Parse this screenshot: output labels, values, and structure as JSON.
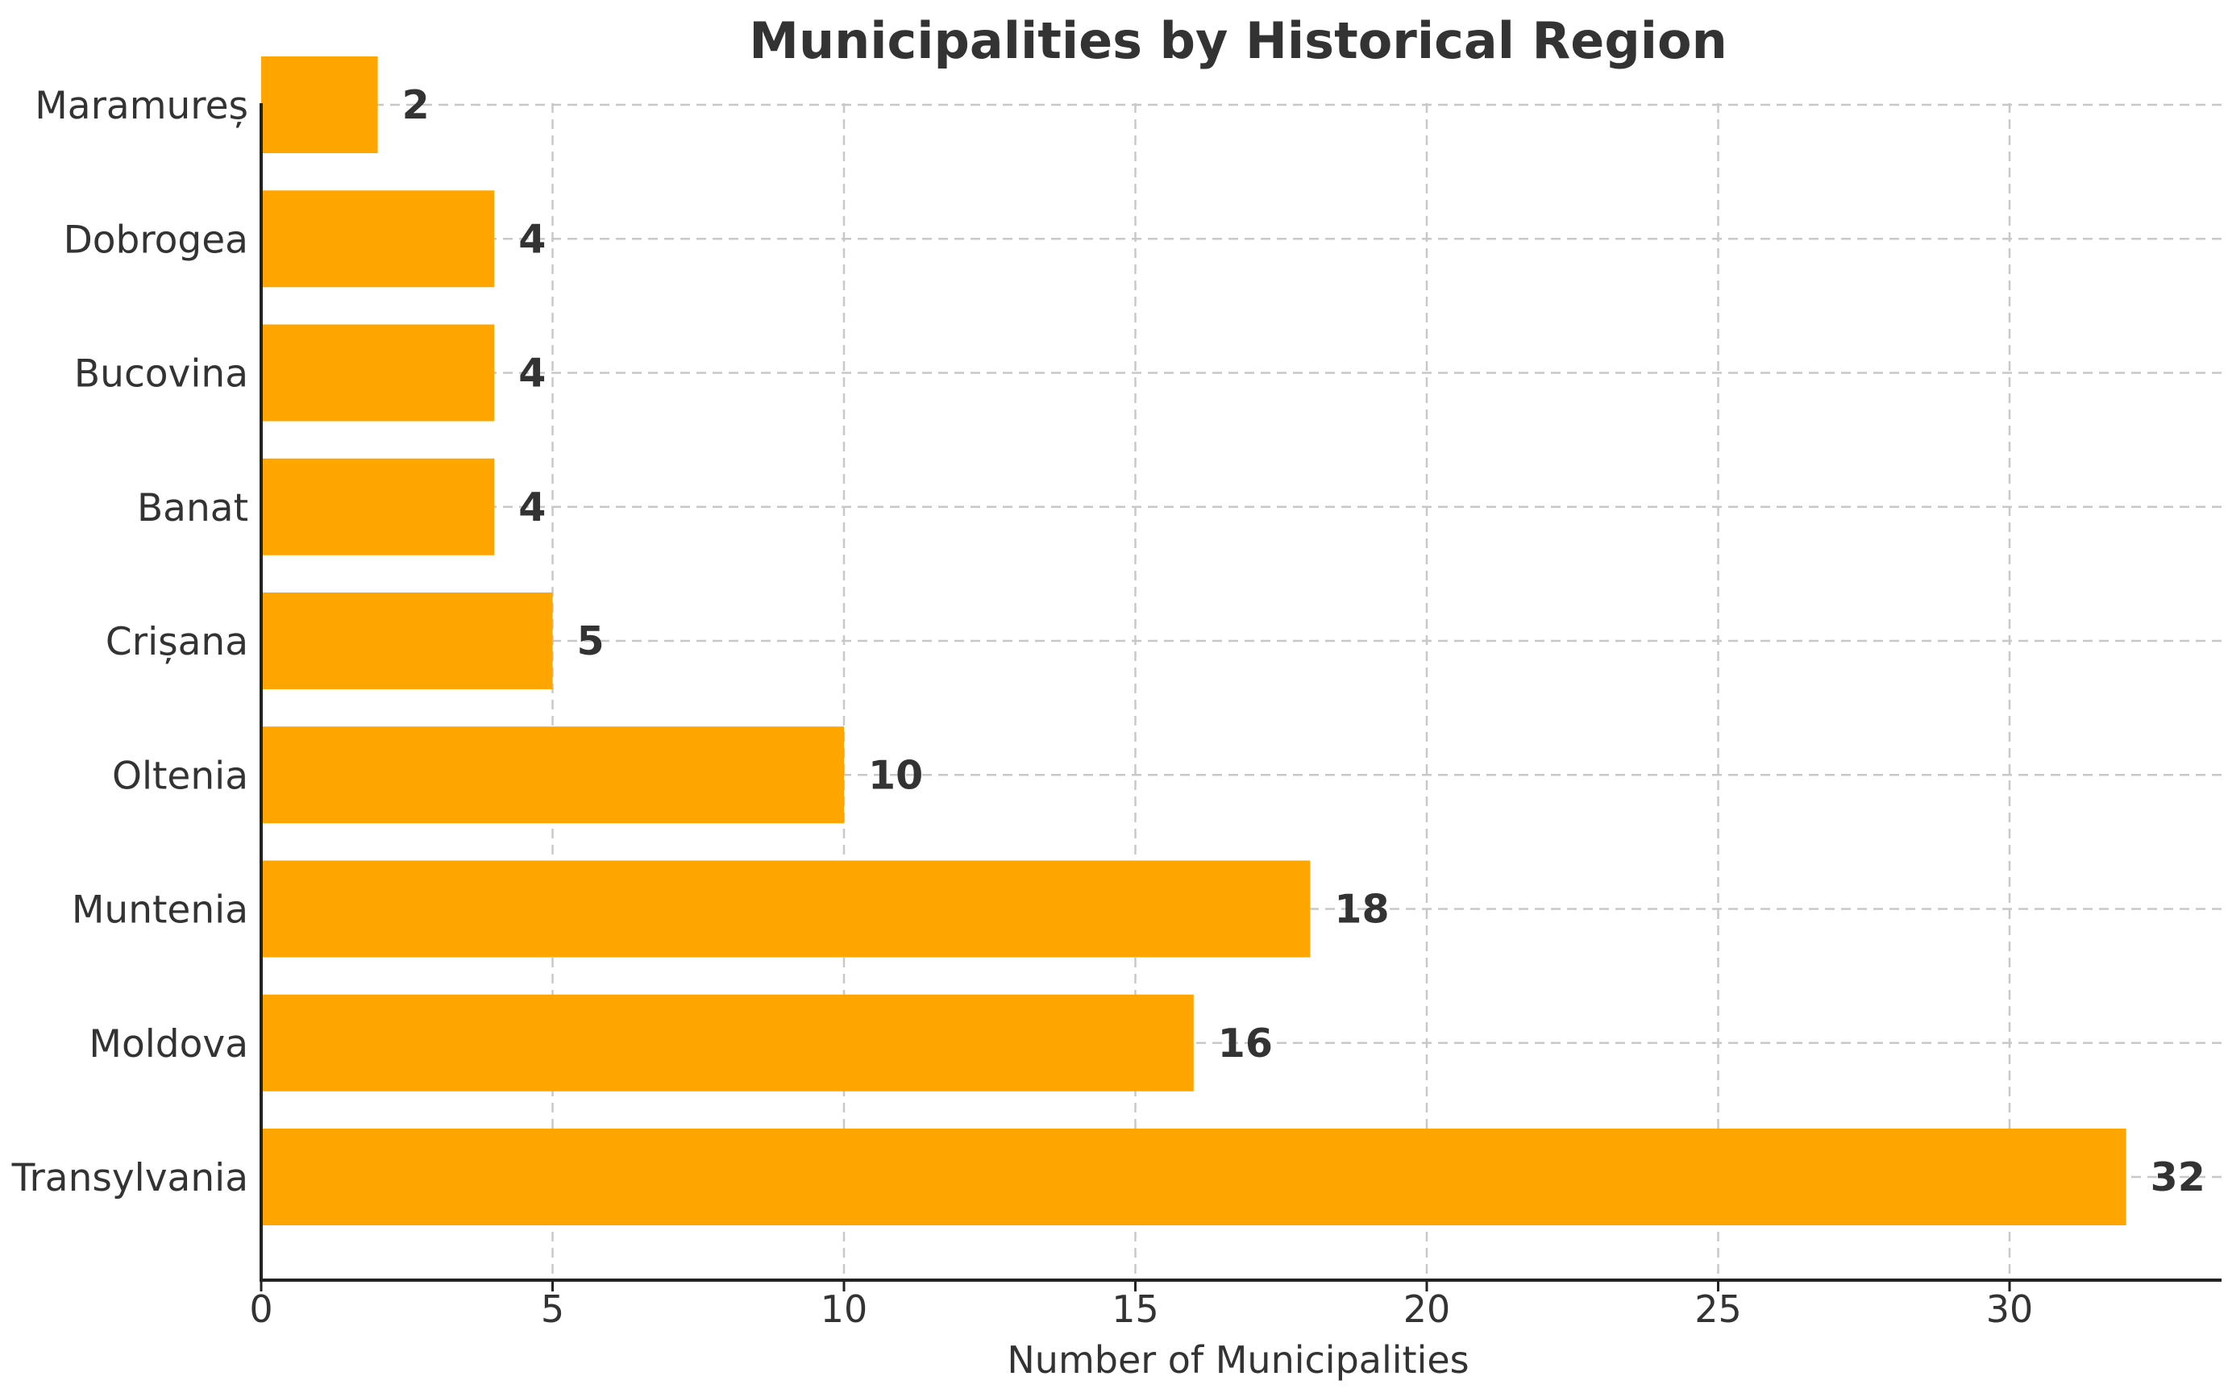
{
  "chart_data": {
    "type": "bar",
    "orientation": "horizontal",
    "title": "Municipalities by Historical Region",
    "xlabel": "Number of Municipalities",
    "ylabel": "",
    "categories": [
      "Transylvania",
      "Moldova",
      "Muntenia",
      "Oltenia",
      "Crișana",
      "Banat",
      "Bucovina",
      "Dobrogea",
      "Maramureș"
    ],
    "values": [
      32,
      16,
      18,
      10,
      5,
      4,
      4,
      4,
      2
    ],
    "xlim": [
      0,
      33.5
    ],
    "xticks": [
      0,
      5,
      10,
      15,
      20,
      25,
      30
    ],
    "grid": true,
    "bar_color": "#FFA500",
    "data_labels": true
  }
}
